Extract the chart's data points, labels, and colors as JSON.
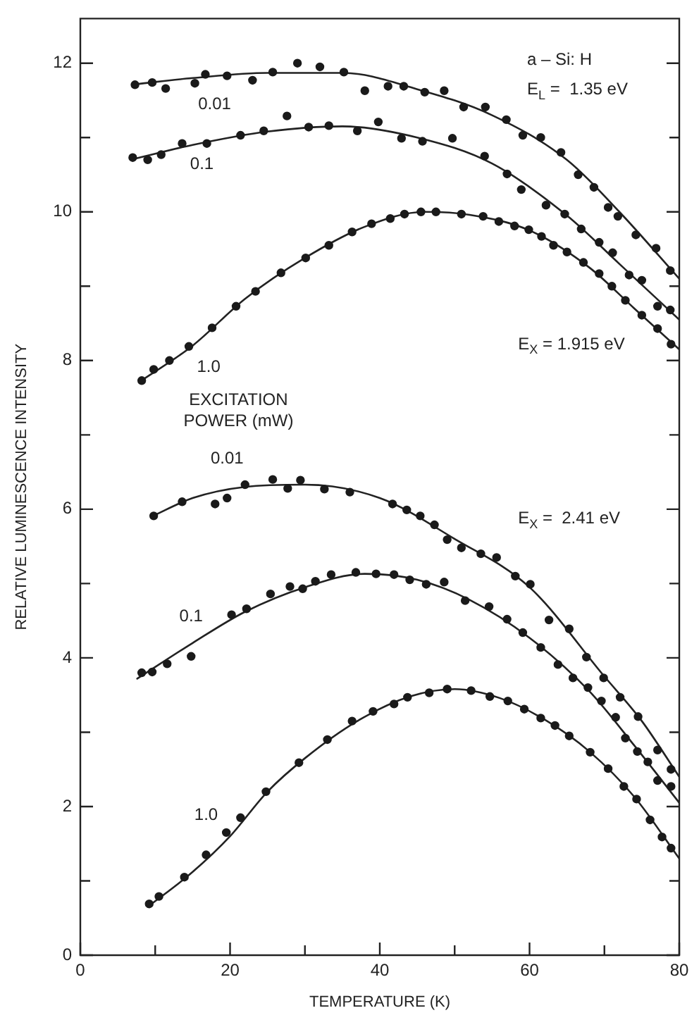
{
  "chart_data": {
    "type": "scatter",
    "xlabel": "TEMPERATURE (K)",
    "ylabel": "RELATIVE LUMINESCENCE INTENSITY",
    "xlim": [
      0,
      80
    ],
    "ylim": [
      0,
      12.6
    ],
    "xticks": [
      0,
      {
        "value": 10,
        "label": null
      },
      20,
      {
        "value": 30,
        "label": null
      },
      40,
      {
        "value": 50,
        "label": null
      },
      60,
      {
        "value": 70,
        "label": null
      },
      80
    ],
    "yticks": [
      0,
      {
        "value": 1,
        "label": null
      },
      2,
      {
        "value": 3,
        "label": null
      },
      4,
      {
        "value": 5,
        "label": null
      },
      6,
      {
        "value": 7,
        "label": null
      },
      8,
      {
        "value": 9,
        "label": null
      },
      10,
      {
        "value": 11,
        "label": null
      },
      12
    ],
    "marker": "circle",
    "legend": false,
    "grid": false,
    "series": [
      {
        "name": "0.01",
        "color": "#1a1a1a",
        "x": [
          7.3,
          9.6,
          11.4,
          15.3,
          16.7,
          19.6,
          23.0,
          25.7,
          29.0,
          32.0,
          35.2,
          38.0,
          41.1,
          43.2,
          46.0,
          48.6,
          51.2,
          54.1,
          56.9,
          59.1,
          61.5,
          64.2,
          66.5,
          68.6,
          70.5,
          71.8,
          74.2,
          76.9,
          78.8
        ],
        "values": [
          11.71,
          11.74,
          11.66,
          11.73,
          11.85,
          11.83,
          11.77,
          11.88,
          12.0,
          11.95,
          11.88,
          11.63,
          11.69,
          11.69,
          11.61,
          11.63,
          11.41,
          11.41,
          11.24,
          11.03,
          11.0,
          10.8,
          10.5,
          10.33,
          10.06,
          9.94,
          9.69,
          9.51,
          9.21
        ]
      },
      {
        "name": "0.1",
        "color": "#1a1a1a",
        "x": [
          7.0,
          9.0,
          10.8,
          13.6,
          16.9,
          21.4,
          24.5,
          27.6,
          30.5,
          33.2,
          37.0,
          39.8,
          42.9,
          45.7,
          49.7,
          54.0,
          57.0,
          58.9,
          62.2,
          64.7,
          66.9,
          69.3,
          71.1,
          73.3,
          75.0,
          77.1,
          78.8
        ],
        "values": [
          10.73,
          10.7,
          10.77,
          10.92,
          10.92,
          11.03,
          11.09,
          11.29,
          11.14,
          11.16,
          11.09,
          11.21,
          10.99,
          10.95,
          10.99,
          10.75,
          10.51,
          10.3,
          10.09,
          9.97,
          9.77,
          9.59,
          9.45,
          9.15,
          9.08,
          8.73,
          8.68
        ]
      },
      {
        "name": "1.0",
        "color": "#1a1a1a",
        "x": [
          8.2,
          9.8,
          11.9,
          14.5,
          17.6,
          20.8,
          23.4,
          26.8,
          30.1,
          33.2,
          36.3,
          38.9,
          41.4,
          43.3,
          45.5,
          47.5,
          50.9,
          53.8,
          55.9,
          58.0,
          59.9,
          61.6,
          63.2,
          65.0,
          67.2,
          69.3,
          71.0,
          72.8,
          75.0,
          77.1,
          78.9
        ],
        "values": [
          7.73,
          7.88,
          8.0,
          8.19,
          8.44,
          8.73,
          8.93,
          9.18,
          9.38,
          9.55,
          9.73,
          9.84,
          9.91,
          9.97,
          10.0,
          10.0,
          9.97,
          9.94,
          9.87,
          9.81,
          9.76,
          9.67,
          9.55,
          9.46,
          9.32,
          9.17,
          9.0,
          8.81,
          8.61,
          8.43,
          8.22
        ]
      },
      {
        "name": "0.01",
        "color": "#1a1a1a",
        "x": [
          9.8,
          13.6,
          18.0,
          19.6,
          22.0,
          25.7,
          27.7,
          29.4,
          32.6,
          36.0,
          41.7,
          43.6,
          45.4,
          47.3,
          49.0,
          50.9,
          53.5,
          55.6,
          58.1,
          60.1,
          62.6,
          65.3,
          67.6,
          69.9,
          72.1,
          74.5,
          77.1,
          78.9
        ],
        "values": [
          5.91,
          6.1,
          6.07,
          6.15,
          6.33,
          6.4,
          6.28,
          6.39,
          6.27,
          6.23,
          6.07,
          5.99,
          5.91,
          5.79,
          5.59,
          5.48,
          5.4,
          5.35,
          5.1,
          4.99,
          4.51,
          4.39,
          4.01,
          3.73,
          3.47,
          3.21,
          2.76,
          2.5
        ]
      },
      {
        "name": "0.1",
        "color": "#1a1a1a",
        "x": [
          8.2,
          9.6,
          11.6,
          14.8,
          20.2,
          22.2,
          25.4,
          28.0,
          29.7,
          31.4,
          33.5,
          36.8,
          39.5,
          41.9,
          44.0,
          46.2,
          48.6,
          51.4,
          54.6,
          57.0,
          59.1,
          61.5,
          63.8,
          65.8,
          67.8,
          69.6,
          71.5,
          72.8,
          74.4,
          75.8,
          77.1,
          78.9
        ],
        "values": [
          3.8,
          3.81,
          3.92,
          4.02,
          4.58,
          4.66,
          4.86,
          4.96,
          4.93,
          5.03,
          5.12,
          5.15,
          5.13,
          5.12,
          5.05,
          4.99,
          5.02,
          4.77,
          4.69,
          4.52,
          4.34,
          4.14,
          3.91,
          3.73,
          3.6,
          3.42,
          3.2,
          2.92,
          2.74,
          2.6,
          2.35,
          2.27
        ]
      },
      {
        "name": "1.0",
        "color": "#1a1a1a",
        "x": [
          9.2,
          10.5,
          13.9,
          16.8,
          19.5,
          21.4,
          24.8,
          29.2,
          33.0,
          36.3,
          39.1,
          41.9,
          43.7,
          46.6,
          49.0,
          52.2,
          54.7,
          57.1,
          59.3,
          61.5,
          63.4,
          65.3,
          68.1,
          70.5,
          72.6,
          74.3,
          76.1,
          77.7,
          78.9
        ],
        "values": [
          0.69,
          0.79,
          1.05,
          1.35,
          1.65,
          1.85,
          2.2,
          2.59,
          2.9,
          3.15,
          3.28,
          3.38,
          3.47,
          3.53,
          3.58,
          3.56,
          3.48,
          3.42,
          3.31,
          3.19,
          3.09,
          2.95,
          2.73,
          2.51,
          2.27,
          2.1,
          1.82,
          1.59,
          1.44
        ]
      },
      {
        "type": "line",
        "marker": "none",
        "color": "#222222",
        "x": [
          7.5,
          15,
          25,
          35,
          45,
          55,
          65,
          72,
          80
        ],
        "values": [
          11.72,
          11.8,
          11.87,
          11.87,
          11.65,
          11.3,
          10.7,
          10.0,
          9.1
        ]
      },
      {
        "type": "line",
        "marker": "none",
        "color": "#222222",
        "x": [
          7.5,
          15,
          25,
          35,
          45,
          55,
          65,
          72,
          80
        ],
        "values": [
          10.72,
          10.9,
          11.08,
          11.15,
          11.0,
          10.65,
          9.95,
          9.3,
          8.55
        ]
      },
      {
        "type": "line",
        "marker": "none",
        "color": "#222222",
        "x": [
          8,
          15,
          22,
          30,
          38,
          46,
          52,
          60,
          68,
          74,
          80
        ],
        "values": [
          7.72,
          8.2,
          8.83,
          9.38,
          9.8,
          10.0,
          9.96,
          9.75,
          9.25,
          8.7,
          8.15
        ]
      },
      {
        "type": "line",
        "marker": "none",
        "color": "#222222",
        "x": [
          9.5,
          15,
          22,
          30,
          40,
          50,
          60,
          70,
          75,
          80
        ],
        "values": [
          5.9,
          6.15,
          6.3,
          6.33,
          6.15,
          5.6,
          4.95,
          3.75,
          3.15,
          2.4
        ]
      },
      {
        "type": "line",
        "marker": "none",
        "color": "#222222",
        "x": [
          7.6,
          15,
          22,
          30,
          38,
          45,
          52,
          60,
          68,
          74,
          80
        ],
        "values": [
          3.72,
          4.2,
          4.62,
          4.95,
          5.13,
          5.05,
          4.78,
          4.27,
          3.55,
          2.82,
          2.05
        ]
      },
      {
        "type": "line",
        "marker": "none",
        "color": "#222222",
        "x": [
          9,
          15,
          20,
          25,
          30,
          37,
          44,
          50,
          56,
          62,
          68,
          74,
          80
        ],
        "values": [
          0.65,
          1.12,
          1.6,
          2.2,
          2.65,
          3.15,
          3.48,
          3.58,
          3.46,
          3.17,
          2.74,
          2.13,
          1.3
        ]
      }
    ],
    "annotations": [
      "a – Si: H",
      "E$_{L}$ =  1.35 eV",
      "E$_{X}$ = 1.915 eV",
      "EXCITATION\nPOWER (mW)",
      "E$_{X}$ =  2.41 eV"
    ]
  }
}
